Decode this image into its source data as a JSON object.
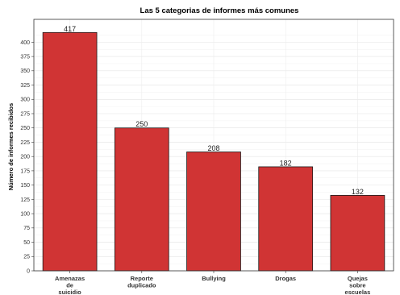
{
  "chart_data": {
    "type": "bar",
    "title": "Las 5 categorias de informes más comunes",
    "xlabel": "",
    "ylabel": "Número de informes recibidos",
    "categories": [
      [
        "Amenazas",
        "de",
        "suicidio"
      ],
      [
        "Reporte",
        "duplicado"
      ],
      [
        "Bullying"
      ],
      [
        "Drogas"
      ],
      [
        "Quejas",
        "sobre",
        "escuelas"
      ]
    ],
    "values": [
      417,
      250,
      208,
      182,
      132
    ],
    "ylim": [
      0,
      440
    ],
    "yticks": [
      0,
      25,
      50,
      75,
      100,
      125,
      150,
      175,
      200,
      225,
      250,
      275,
      300,
      325,
      350,
      375,
      400
    ],
    "grid": true,
    "bar_color": "#d03434",
    "bar_edge_color": "#1a1a1a"
  }
}
